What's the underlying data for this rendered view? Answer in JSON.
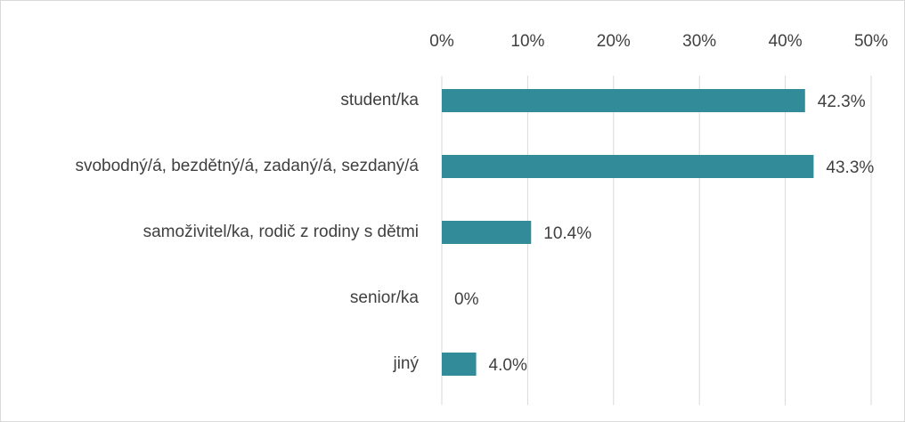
{
  "chart_data": {
    "type": "bar",
    "orientation": "horizontal",
    "categories": [
      "student/ka",
      "svobodný/á, bezdětný/á, zadaný/á, sezdaný/á",
      "samoživitel/ka, rodič z rodiny s dětmi",
      "senior/ka",
      "jiný"
    ],
    "values": [
      42.3,
      43.3,
      10.4,
      0,
      4.0
    ],
    "value_labels": [
      "42.3%",
      "43.3%",
      "10.4%",
      "0%",
      "4.0%"
    ],
    "color": "#318b98",
    "xlim": [
      0,
      50
    ],
    "xticks": [
      {
        "value": 0,
        "label": "0%"
      },
      {
        "value": 10,
        "label": "10%"
      },
      {
        "value": 20,
        "label": "20%"
      },
      {
        "value": 30,
        "label": "30%"
      },
      {
        "value": 40,
        "label": "40%"
      },
      {
        "value": 50,
        "label": "50%"
      }
    ],
    "grid": true
  }
}
